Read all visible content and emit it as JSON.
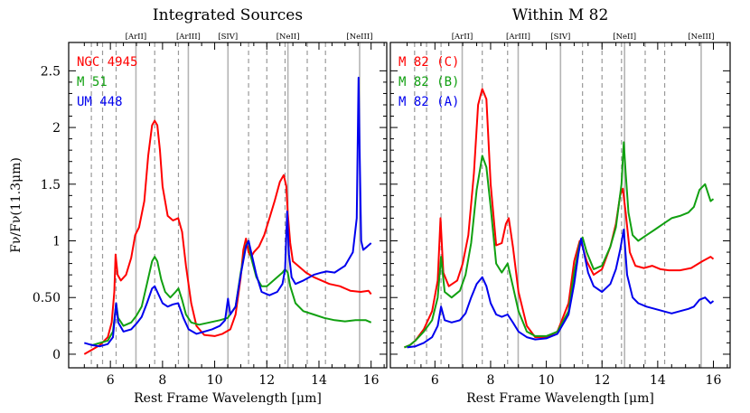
{
  "colors": {
    "red": "#ff0000",
    "green": "#11a011",
    "blue": "#0000ee",
    "solid_line": "#b4b4b4",
    "dashed_line": "#999999"
  },
  "shared": {
    "xlabel": "Rest Frame Wavelength [μm]",
    "ylabel": "Fν/Fν(11.3μm)",
    "xlim": [
      4.4,
      16.6
    ],
    "ylim": [
      -0.12,
      2.75
    ],
    "x_ticks": [
      6,
      8,
      10,
      12,
      14,
      16
    ],
    "y_ticks": [
      0,
      0.5,
      1,
      1.5,
      2,
      2.5
    ],
    "y_tick_labels": [
      "0",
      "0.50",
      "1",
      "1.5",
      "2",
      "2.5"
    ],
    "emission_lines": [
      {
        "label": "[ArII]",
        "x": 6.98
      },
      {
        "label": "[ArIII]",
        "x": 8.99
      },
      {
        "label": "[SIV]",
        "x": 10.51
      },
      {
        "label": "[NeII]",
        "x": 12.81
      },
      {
        "label": "[NeIII]",
        "x": 15.56
      }
    ],
    "pah_features": [
      5.27,
      5.7,
      6.22,
      7.7,
      8.61,
      11.3,
      12.0,
      12.7,
      13.55,
      14.25
    ]
  },
  "chart_data": [
    {
      "type": "line",
      "title": "Integrated Sources",
      "series": [
        {
          "name": "NGC 4945",
          "color": "red",
          "x": [
            5.0,
            5.3,
            5.6,
            5.9,
            6.05,
            6.15,
            6.2,
            6.28,
            6.4,
            6.6,
            6.8,
            6.95,
            7.1,
            7.3,
            7.45,
            7.6,
            7.7,
            7.8,
            7.9,
            8.0,
            8.2,
            8.4,
            8.6,
            8.75,
            8.9,
            9.1,
            9.3,
            9.6,
            10.0,
            10.3,
            10.6,
            10.8,
            11.0,
            11.1,
            11.2,
            11.3,
            11.4,
            11.5,
            11.7,
            11.9,
            12.1,
            12.3,
            12.5,
            12.65,
            12.75,
            12.8,
            12.9,
            13.0,
            13.2,
            13.5,
            13.8,
            14.1,
            14.4,
            14.8,
            15.2,
            15.6,
            15.9,
            16.0
          ],
          "y": [
            0.0,
            0.04,
            0.08,
            0.15,
            0.28,
            0.55,
            0.88,
            0.7,
            0.65,
            0.7,
            0.85,
            1.05,
            1.12,
            1.35,
            1.75,
            2.02,
            2.06,
            2.02,
            1.8,
            1.48,
            1.22,
            1.18,
            1.2,
            1.08,
            0.78,
            0.45,
            0.25,
            0.17,
            0.16,
            0.18,
            0.22,
            0.35,
            0.68,
            0.92,
            1.02,
            0.9,
            0.86,
            0.9,
            0.95,
            1.05,
            1.2,
            1.35,
            1.52,
            1.58,
            1.48,
            1.25,
            0.98,
            0.82,
            0.78,
            0.72,
            0.68,
            0.65,
            0.62,
            0.6,
            0.56,
            0.55,
            0.56,
            0.53
          ]
        },
        {
          "name": "M 51",
          "color": "green",
          "x": [
            5.3,
            5.6,
            5.9,
            6.1,
            6.22,
            6.3,
            6.5,
            6.8,
            7.0,
            7.2,
            7.4,
            7.6,
            7.7,
            7.8,
            7.95,
            8.1,
            8.3,
            8.5,
            8.61,
            8.75,
            8.9,
            9.1,
            9.4,
            9.8,
            10.2,
            10.5,
            10.8,
            11.0,
            11.2,
            11.3,
            11.4,
            11.6,
            11.8,
            12.0,
            12.3,
            12.6,
            12.7,
            12.8,
            12.9,
            13.1,
            13.4,
            13.8,
            14.2,
            14.6,
            15.0,
            15.4,
            15.8,
            16.0
          ],
          "y": [
            0.08,
            0.1,
            0.12,
            0.2,
            0.45,
            0.32,
            0.25,
            0.28,
            0.34,
            0.42,
            0.62,
            0.82,
            0.86,
            0.82,
            0.66,
            0.55,
            0.5,
            0.55,
            0.58,
            0.48,
            0.35,
            0.28,
            0.26,
            0.28,
            0.3,
            0.32,
            0.42,
            0.72,
            0.96,
            1.0,
            0.85,
            0.68,
            0.6,
            0.6,
            0.66,
            0.72,
            0.75,
            0.72,
            0.6,
            0.45,
            0.38,
            0.35,
            0.32,
            0.3,
            0.29,
            0.3,
            0.3,
            0.28
          ]
        },
        {
          "name": "UM 448",
          "color": "blue",
          "x": [
            5.0,
            5.3,
            5.6,
            5.9,
            6.1,
            6.22,
            6.3,
            6.5,
            6.8,
            7.0,
            7.2,
            7.4,
            7.6,
            7.7,
            7.8,
            8.0,
            8.2,
            8.4,
            8.6,
            8.8,
            9.0,
            9.3,
            9.6,
            9.9,
            10.2,
            10.4,
            10.51,
            10.6,
            10.8,
            11.0,
            11.2,
            11.3,
            11.4,
            11.6,
            11.8,
            12.1,
            12.4,
            12.6,
            12.7,
            12.78,
            12.85,
            12.95,
            13.1,
            13.4,
            13.8,
            14.1,
            14.3,
            14.6,
            15.0,
            15.3,
            15.45,
            15.52,
            15.56,
            15.62,
            15.7,
            15.85,
            16.0
          ],
          "y": [
            0.1,
            0.08,
            0.07,
            0.09,
            0.15,
            0.45,
            0.28,
            0.2,
            0.22,
            0.27,
            0.33,
            0.45,
            0.58,
            0.6,
            0.55,
            0.45,
            0.42,
            0.44,
            0.45,
            0.32,
            0.22,
            0.18,
            0.2,
            0.22,
            0.25,
            0.3,
            0.49,
            0.35,
            0.42,
            0.7,
            0.95,
            1.0,
            0.9,
            0.7,
            0.55,
            0.52,
            0.55,
            0.62,
            0.75,
            1.26,
            0.88,
            0.68,
            0.62,
            0.65,
            0.7,
            0.72,
            0.73,
            0.72,
            0.78,
            0.9,
            1.2,
            2.44,
            1.8,
            1.0,
            0.92,
            0.95,
            0.98
          ]
        }
      ]
    },
    {
      "type": "line",
      "title": "Within M 82",
      "series": [
        {
          "name": "M 82 (C)",
          "color": "red",
          "x": [
            4.9,
            5.1,
            5.3,
            5.6,
            5.9,
            6.1,
            6.2,
            6.3,
            6.5,
            6.8,
            7.0,
            7.2,
            7.4,
            7.55,
            7.7,
            7.85,
            8.0,
            8.2,
            8.4,
            8.55,
            8.65,
            8.8,
            9.0,
            9.3,
            9.6,
            10.0,
            10.4,
            10.8,
            11.0,
            11.2,
            11.3,
            11.45,
            11.7,
            12.0,
            12.3,
            12.5,
            12.65,
            12.75,
            12.85,
            13.0,
            13.2,
            13.5,
            13.8,
            14.1,
            14.4,
            14.8,
            15.2,
            15.6,
            15.9,
            16.0
          ],
          "y": [
            0.06,
            0.08,
            0.12,
            0.22,
            0.38,
            0.65,
            1.2,
            0.72,
            0.6,
            0.65,
            0.8,
            1.05,
            1.6,
            2.2,
            2.34,
            2.25,
            1.5,
            0.96,
            0.98,
            1.15,
            1.2,
            0.95,
            0.55,
            0.25,
            0.15,
            0.15,
            0.2,
            0.45,
            0.82,
            1.0,
            0.95,
            0.82,
            0.7,
            0.75,
            0.95,
            1.15,
            1.4,
            1.46,
            1.25,
            0.9,
            0.78,
            0.76,
            0.78,
            0.75,
            0.74,
            0.74,
            0.76,
            0.82,
            0.86,
            0.84
          ]
        },
        {
          "name": "M 82 (B)",
          "color": "green",
          "x": [
            4.9,
            5.1,
            5.3,
            5.6,
            5.9,
            6.1,
            6.22,
            6.35,
            6.6,
            6.9,
            7.1,
            7.3,
            7.5,
            7.7,
            7.85,
            8.0,
            8.2,
            8.4,
            8.61,
            8.8,
            9.0,
            9.3,
            9.6,
            10.0,
            10.4,
            10.8,
            11.0,
            11.2,
            11.3,
            11.45,
            11.7,
            12.0,
            12.3,
            12.5,
            12.7,
            12.78,
            12.85,
            12.95,
            13.1,
            13.3,
            13.6,
            13.9,
            14.2,
            14.5,
            14.8,
            15.1,
            15.3,
            15.5,
            15.7,
            15.9,
            16.0
          ],
          "y": [
            0.06,
            0.08,
            0.12,
            0.2,
            0.3,
            0.5,
            0.86,
            0.55,
            0.5,
            0.56,
            0.7,
            0.98,
            1.45,
            1.75,
            1.65,
            1.3,
            0.8,
            0.72,
            0.8,
            0.6,
            0.38,
            0.2,
            0.16,
            0.16,
            0.2,
            0.38,
            0.72,
            0.98,
            1.03,
            0.9,
            0.75,
            0.78,
            0.95,
            1.12,
            1.5,
            1.87,
            1.6,
            1.25,
            1.05,
            1.0,
            1.05,
            1.1,
            1.15,
            1.2,
            1.22,
            1.25,
            1.3,
            1.45,
            1.5,
            1.35,
            1.37
          ]
        },
        {
          "name": "M 82 (A)",
          "color": "blue",
          "x": [
            5.0,
            5.3,
            5.6,
            5.9,
            6.1,
            6.22,
            6.35,
            6.6,
            6.9,
            7.1,
            7.3,
            7.5,
            7.7,
            7.85,
            8.0,
            8.2,
            8.4,
            8.61,
            8.8,
            9.0,
            9.3,
            9.6,
            10.0,
            10.4,
            10.8,
            11.0,
            11.15,
            11.25,
            11.35,
            11.5,
            11.7,
            12.0,
            12.3,
            12.5,
            12.65,
            12.78,
            12.9,
            13.1,
            13.3,
            13.6,
            13.9,
            14.2,
            14.5,
            14.8,
            15.1,
            15.3,
            15.5,
            15.7,
            15.9,
            16.0
          ],
          "y": [
            0.06,
            0.07,
            0.1,
            0.15,
            0.25,
            0.42,
            0.3,
            0.28,
            0.3,
            0.36,
            0.5,
            0.62,
            0.68,
            0.6,
            0.45,
            0.35,
            0.33,
            0.35,
            0.28,
            0.2,
            0.15,
            0.13,
            0.14,
            0.18,
            0.35,
            0.62,
            0.88,
            1.02,
            0.9,
            0.72,
            0.6,
            0.55,
            0.62,
            0.75,
            0.92,
            1.1,
            0.7,
            0.5,
            0.45,
            0.42,
            0.4,
            0.38,
            0.36,
            0.38,
            0.4,
            0.42,
            0.48,
            0.5,
            0.45,
            0.47
          ]
        }
      ]
    }
  ]
}
